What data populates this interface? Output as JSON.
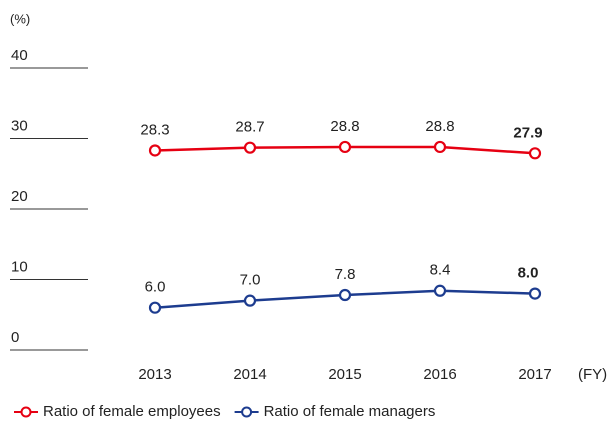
{
  "chart_data": {
    "type": "line",
    "y_label": "(%)",
    "x_label": "(FY)",
    "categories": [
      "2013",
      "2014",
      "2015",
      "2016",
      "2017"
    ],
    "series": [
      {
        "name": "Ratio of female employees",
        "color": "#e60012",
        "values": [
          28.3,
          28.7,
          28.8,
          28.8,
          27.9
        ],
        "value_labels": [
          "28.3",
          "28.7",
          "28.8",
          "28.8",
          "27.9"
        ]
      },
      {
        "name": "Ratio of female managers",
        "color": "#1d3c8f",
        "values": [
          6.0,
          7.0,
          7.8,
          8.4,
          8.0
        ],
        "value_labels": [
          "6.0",
          "7.0",
          "7.8",
          "8.4",
          "8.0"
        ]
      }
    ],
    "bold_last_label": true,
    "ylim": [
      0,
      40
    ],
    "yticks": [
      0,
      10,
      20,
      30,
      40
    ]
  }
}
